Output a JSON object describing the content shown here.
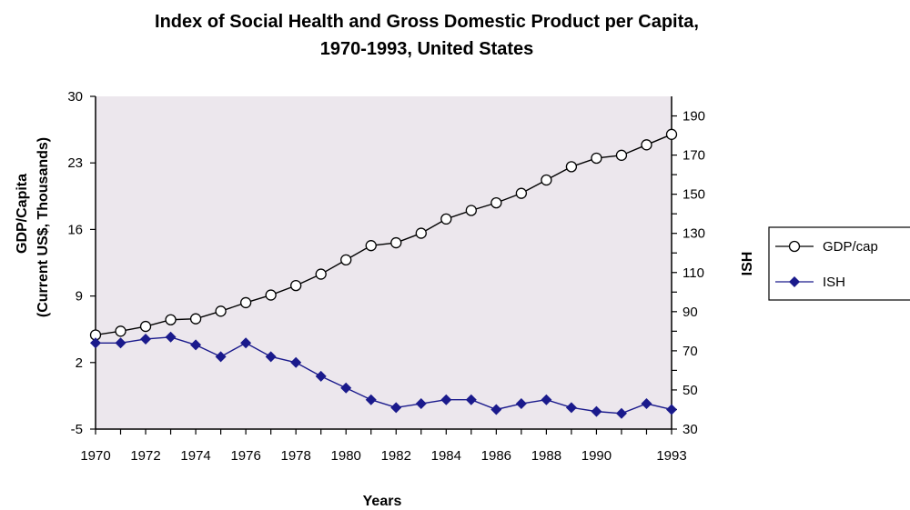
{
  "chart_data": {
    "type": "line",
    "title": [
      "Index of Social Health and Gross Domestic Product per Capita,",
      "1970-1993, United States"
    ],
    "xlabel": "Years",
    "ylabel_left": [
      "GDP/Capita",
      "(Current US$, Thousands)"
    ],
    "ylabel_right": "ISH",
    "x": [
      1970,
      1971,
      1972,
      1973,
      1974,
      1975,
      1976,
      1977,
      1978,
      1979,
      1980,
      1981,
      1982,
      1983,
      1984,
      1985,
      1986,
      1987,
      1988,
      1989,
      1990,
      1991,
      1992,
      1993
    ],
    "xlim": [
      1970,
      1993
    ],
    "x_tick_labels": [
      "1970",
      "1972",
      "1974",
      "1976",
      "1978",
      "1980",
      "1982",
      "1984",
      "1986",
      "1988",
      "1990",
      "1993"
    ],
    "ylim_left": [
      -5,
      30
    ],
    "y_left_tick_labels": [
      "30",
      "23",
      "16",
      "9",
      "2",
      "-5"
    ],
    "ylim_right": [
      30,
      200
    ],
    "y_right_tick_labels": [
      "190",
      "170",
      "150",
      "130",
      "110",
      "90",
      "70",
      "50",
      "30"
    ],
    "plot_background": "#ece7ed",
    "legend_position": "right",
    "series": [
      {
        "name": "GDP/cap",
        "axis": "left",
        "color": "#000000",
        "marker": "open-circle",
        "values": [
          4.9,
          5.3,
          5.8,
          6.5,
          6.6,
          7.4,
          8.3,
          9.1,
          10.1,
          11.3,
          12.8,
          14.3,
          14.6,
          15.6,
          17.1,
          18.0,
          18.8,
          19.8,
          21.2,
          22.6,
          23.5,
          23.8,
          24.9,
          26.0
        ]
      },
      {
        "name": "ISH",
        "axis": "right",
        "color": "#1a1a8c",
        "marker": "filled-diamond",
        "values": [
          74,
          74,
          76,
          77,
          73,
          67,
          74,
          67,
          64,
          57,
          51,
          45,
          41,
          43,
          45,
          45,
          40,
          43,
          45,
          41,
          39,
          38,
          43,
          40
        ]
      }
    ]
  }
}
